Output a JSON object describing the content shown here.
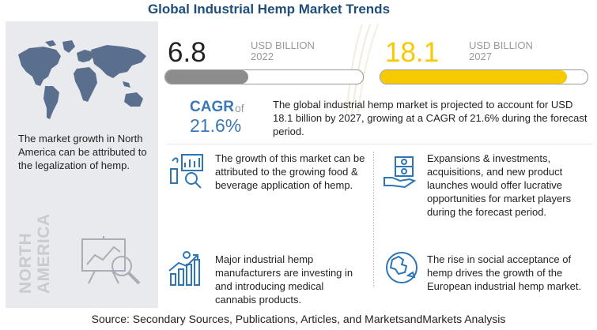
{
  "title": "Global Industrial Hemp Market Trends",
  "market_2022": {
    "value": "6.8",
    "unit": "USD BILLION",
    "year": "2022",
    "bar_fill": 0.42,
    "color": "#8c8c8c"
  },
  "market_2027": {
    "value": "18.1",
    "unit": "USD BILLION",
    "year": "2027",
    "bar_fill": 0.9,
    "color": "#f7c900"
  },
  "cagr": {
    "label": "CAGR",
    "of": "of",
    "value": "21.6%",
    "description": "The global industrial hemp market is projected to account for USD 18.1 billion by 2027, growing at a CAGR of 21.6% during the forecast period."
  },
  "left_panel": {
    "map_icon": "world-map-icon",
    "text": "The market growth in North America can be attributed to the legalization of hemp.",
    "region": [
      "NORTH",
      "AMERICA"
    ],
    "analysis_icon": "presentation-analysis-icon"
  },
  "facts": [
    {
      "icon": "food-analysis-icon",
      "text": "The growth of this market can be attributed to the growing food & beverage application of hemp."
    },
    {
      "icon": "money-hand-icon",
      "text": "Expansions & investments, acquisitions, and new product launches would offer lucrative opportunities for market players during the forecast period."
    },
    {
      "icon": "growth-chart-icon",
      "text": "Major industrial hemp manufacturers are investing in and introducing medical cannabis products."
    },
    {
      "icon": "europe-globe-icon",
      "text": "The rise in social acceptance of hemp drives the growth of the European industrial hemp market."
    }
  ],
  "source": "Source: Secondary Sources, Publications, Articles, and MarketsandMarkets Analysis",
  "colors": {
    "title": "#1f4e79",
    "accent_blue": "#3c78b5",
    "panel_bg": "#e9eaee",
    "icon_blue": "#2e75b6"
  }
}
